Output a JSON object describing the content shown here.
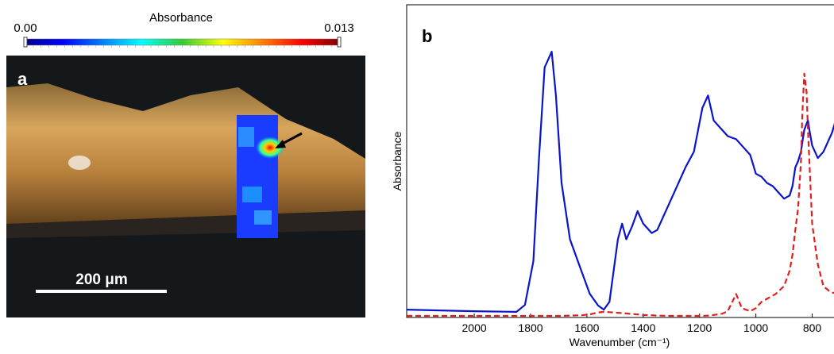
{
  "chart_data": [
    {
      "type": "colorbar",
      "title": "Absorbance",
      "panel_label": "a",
      "annotation": "200 μm",
      "lim": [
        0,
        0.013
      ],
      "ticks": [
        {
          "value": 0,
          "label": "0.00"
        },
        0.013
      ]
    },
    {
      "type": "line",
      "panel_label": "b",
      "y_label": "Absorbance",
      "x_label": "Wavenumber (cm⁻¹)",
      "xlim": [
        2240,
        700
      ],
      "xticks": [
        2000,
        1800,
        1600,
        1400,
        1200,
        1000,
        800
      ],
      "ylim": [
        0,
        1
      ],
      "x": [
        2240,
        2000,
        1850,
        1820,
        1790,
        1770,
        1750,
        1740,
        1725,
        1710,
        1690,
        1660,
        1620,
        1590,
        1560,
        1540,
        1520,
        1490,
        1475,
        1460,
        1440,
        1420,
        1400,
        1370,
        1350,
        1300,
        1250,
        1220,
        1190,
        1170,
        1150,
        1120,
        1100,
        1070,
        1050,
        1020,
        1000,
        980,
        960,
        940,
        930,
        900,
        880,
        870,
        860,
        850,
        840,
        835,
        828,
        820,
        815,
        810,
        800,
        780,
        760,
        740,
        730,
        720,
        705
      ],
      "series": [
        {
          "color": "#0a14c8",
          "line_style": "solid",
          "values": [
            0.025,
            0.02,
            0.018,
            0.04,
            0.18,
            0.51,
            0.8,
            0.82,
            0.85,
            0.71,
            0.43,
            0.25,
            0.15,
            0.076,
            0.038,
            0.025,
            0.05,
            0.25,
            0.3,
            0.25,
            0.29,
            0.34,
            0.3,
            0.27,
            0.28,
            0.38,
            0.48,
            0.53,
            0.67,
            0.71,
            0.63,
            0.6,
            0.58,
            0.57,
            0.55,
            0.52,
            0.46,
            0.45,
            0.43,
            0.42,
            0.41,
            0.38,
            0.39,
            0.42,
            0.48,
            0.5,
            0.53,
            0.56,
            0.6,
            0.62,
            0.63,
            0.6,
            0.55,
            0.51,
            0.53,
            0.57,
            0.59,
            0.62,
            0.64
          ]
        },
        {
          "color": "#e0201e",
          "line_style": "dashed",
          "values": [
            0.005,
            0.005,
            0.005,
            0.005,
            0.005,
            0.005,
            0.005,
            0.005,
            0.005,
            0.005,
            0.005,
            0.006,
            0.007,
            0.01,
            0.016,
            0.018,
            0.017,
            0.015,
            0.014,
            0.013,
            0.011,
            0.01,
            0.008,
            0.007,
            0.006,
            0.005,
            0.005,
            0.005,
            0.005,
            0.006,
            0.008,
            0.012,
            0.02,
            0.075,
            0.03,
            0.02,
            0.03,
            0.05,
            0.06,
            0.07,
            0.075,
            0.1,
            0.15,
            0.2,
            0.28,
            0.35,
            0.5,
            0.65,
            0.78,
            0.72,
            0.6,
            0.5,
            0.3,
            0.17,
            0.1,
            0.085,
            0.08,
            0.078,
            0.075
          ]
        }
      ]
    }
  ]
}
